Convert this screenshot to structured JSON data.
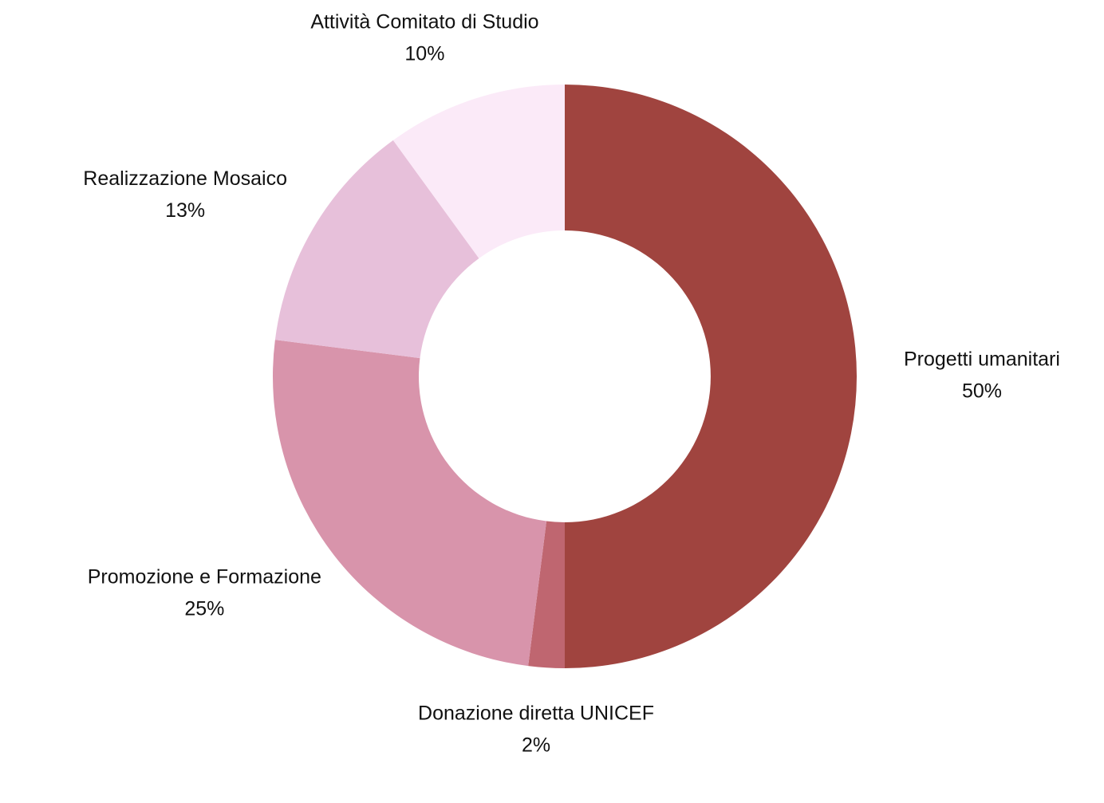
{
  "chart_data": {
    "type": "donut",
    "categories": [
      "Progetti umanitari",
      "Donazione diretta UNICEF",
      "Promozione e Formazione",
      "Realizzazione Mosaico",
      "Attività Comitato di Studio"
    ],
    "values": [
      50,
      2,
      25,
      13,
      10
    ],
    "value_labels": [
      "50%",
      "2%",
      "25%",
      "13%",
      "10%"
    ],
    "colors": [
      "#a0443f",
      "#bf6670",
      "#d894ab",
      "#e7c0da",
      "#fbeaf8"
    ]
  }
}
